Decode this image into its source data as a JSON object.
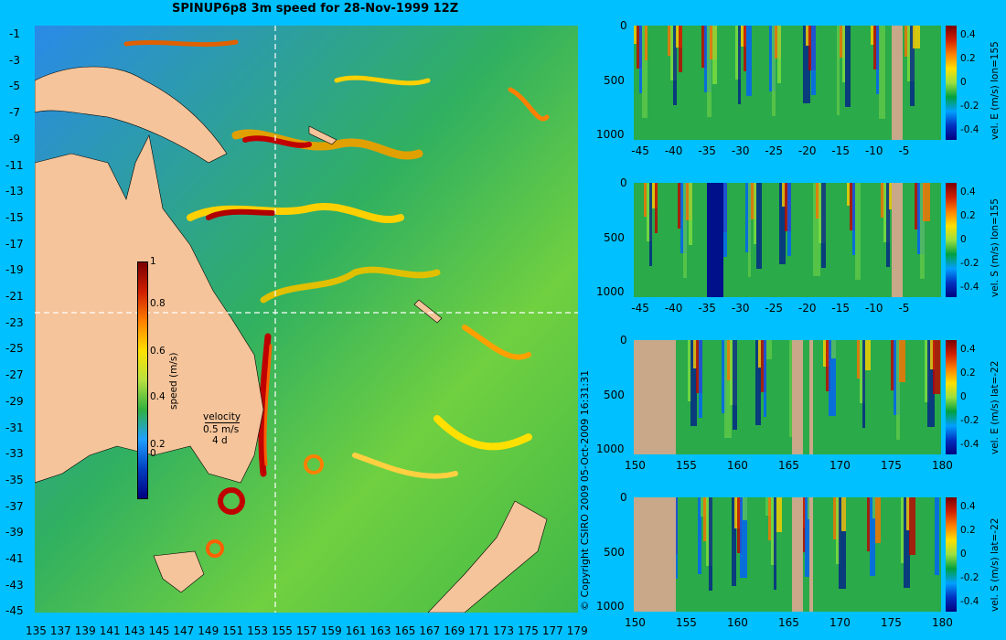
{
  "title": "SPINUP6p8 3m speed for 28-Nov-1999 12Z",
  "copyright": "© Copyright CSIRO 2009  05-Oct-2009 16:31:31",
  "map": {
    "lon_ticks": [
      "135",
      "137",
      "139",
      "141",
      "143",
      "145",
      "147",
      "149",
      "151",
      "153",
      "155",
      "157",
      "159",
      "161",
      "163",
      "165",
      "167",
      "169",
      "171",
      "173",
      "175",
      "177",
      "179"
    ],
    "lat_ticks": [
      "-1",
      "-3",
      "-5",
      "-7",
      "-9",
      "-11",
      "-13",
      "-15",
      "-17",
      "-19",
      "-21",
      "-23",
      "-25",
      "-27",
      "-29",
      "-31",
      "-33",
      "-35",
      "-37",
      "-39",
      "-41",
      "-43",
      "-45"
    ],
    "colorbar": {
      "label": "speed (m/s)",
      "ticks": [
        "1",
        "0.8",
        "0.6",
        "0.4",
        "0.2",
        "0"
      ]
    },
    "velocity_legend": {
      "title": "velocity",
      "scale": "0.5 m/s",
      "days": "4 d"
    },
    "colors": {
      "land": "#f5c49a",
      "ocean_fast": "#9a0000",
      "ocean_slow": "#3070d0",
      "background": "#00c0ff"
    }
  },
  "chart_data": [
    {
      "type": "heatmap",
      "label": "vel. E (m/s) lon=155",
      "x_ticks": [
        "-45",
        "-40",
        "-35",
        "-30",
        "-25",
        "-20",
        "-15",
        "-10",
        "-5"
      ],
      "y_ticks": [
        "0",
        "500",
        "1000"
      ],
      "cbar_ticks": [
        "0.4",
        "0.2",
        "0",
        "-0.2",
        "-0.4"
      ],
      "xlim": [
        -46,
        0
      ],
      "ylim": [
        1050,
        0
      ]
    },
    {
      "type": "heatmap",
      "label": "vel. S (m/s) lon=155",
      "x_ticks": [
        "-45",
        "-40",
        "-35",
        "-30",
        "-25",
        "-20",
        "-15",
        "-10",
        "-5"
      ],
      "y_ticks": [
        "0",
        "500",
        "1000"
      ],
      "cbar_ticks": [
        "0.4",
        "0.2",
        "0",
        "-0.2",
        "-0.4"
      ],
      "xlim": [
        -46,
        0
      ],
      "ylim": [
        1050,
        0
      ]
    },
    {
      "type": "heatmap",
      "label": "vel. E (m/s) lat=-22",
      "x_ticks": [
        "150",
        "155",
        "160",
        "165",
        "170",
        "175",
        "180"
      ],
      "y_ticks": [
        "0",
        "500",
        "1000"
      ],
      "cbar_ticks": [
        "0.4",
        "0.2",
        "0",
        "-0.2",
        "-0.4"
      ],
      "xlim": [
        150,
        180
      ],
      "ylim": [
        1050,
        0
      ]
    },
    {
      "type": "heatmap",
      "label": "vel. S (m/s) lat=-22",
      "x_ticks": [
        "150",
        "155",
        "160",
        "165",
        "170",
        "175",
        "180"
      ],
      "y_ticks": [
        "0",
        "500",
        "1000"
      ],
      "cbar_ticks": [
        "0.4",
        "0.2",
        "0",
        "-0.2",
        "-0.4"
      ],
      "xlim": [
        150,
        180
      ],
      "ylim": [
        1050,
        0
      ]
    }
  ]
}
